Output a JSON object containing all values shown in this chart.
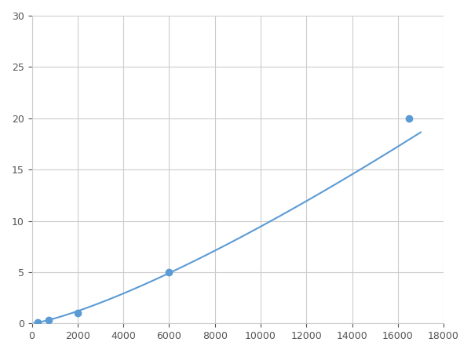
{
  "x_data": [
    250,
    750,
    2000,
    6000,
    16500
  ],
  "y_data": [
    0.1,
    0.3,
    1.0,
    5.0,
    20.0
  ],
  "line_color": "#5b9bd5",
  "marker_color": "#5b9bd5",
  "marker_size": 6,
  "xlim": [
    0,
    18000
  ],
  "ylim": [
    0,
    30
  ],
  "xticks": [
    0,
    2000,
    4000,
    6000,
    8000,
    10000,
    12000,
    14000,
    16000,
    18000
  ],
  "yticks": [
    0,
    5,
    10,
    15,
    20,
    25,
    30
  ],
  "grid_color": "#cccccc",
  "background_color": "#ffffff",
  "fig_width": 6.0,
  "fig_height": 4.5,
  "dpi": 100
}
